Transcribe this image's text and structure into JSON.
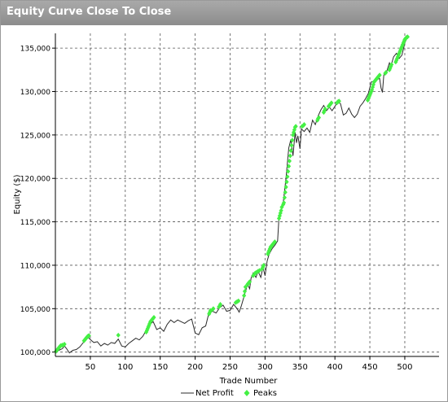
{
  "window": {
    "title": "Equity Curve Close To Close"
  },
  "chart_data": {
    "type": "line",
    "xlabel": "Trade Number",
    "ylabel": "Equity ($)",
    "xlim": [
      0,
      549
    ],
    "ylim": [
      99500,
      136700
    ],
    "x_ticks": [
      50,
      100,
      150,
      200,
      250,
      300,
      350,
      400,
      450,
      500
    ],
    "y_ticks": [
      100000,
      105000,
      110000,
      115000,
      120000,
      125000,
      130000,
      135000
    ],
    "y_tick_labels": [
      "100,000",
      "105,000",
      "110,000",
      "115,000",
      "120,000",
      "125,000",
      "130,000",
      "135,000"
    ],
    "grid": true,
    "legend": {
      "position": "bottom",
      "entries": [
        "Net Profit",
        "Peaks"
      ]
    },
    "series": [
      {
        "name": "Net Profit",
        "color": "#2b2b2b",
        "points": [
          [
            0,
            100000
          ],
          [
            5,
            100200
          ],
          [
            10,
            100400
          ],
          [
            13,
            100700
          ],
          [
            16,
            100400
          ],
          [
            20,
            99900
          ],
          [
            25,
            100200
          ],
          [
            30,
            100300
          ],
          [
            35,
            100600
          ],
          [
            40,
            101100
          ],
          [
            45,
            101800
          ],
          [
            48,
            101600
          ],
          [
            52,
            101300
          ],
          [
            55,
            101100
          ],
          [
            60,
            101200
          ],
          [
            65,
            100700
          ],
          [
            70,
            101000
          ],
          [
            75,
            100800
          ],
          [
            80,
            101100
          ],
          [
            85,
            101000
          ],
          [
            90,
            101500
          ],
          [
            95,
            100700
          ],
          [
            100,
            100600
          ],
          [
            105,
            101000
          ],
          [
            110,
            101300
          ],
          [
            115,
            101600
          ],
          [
            120,
            101400
          ],
          [
            125,
            101800
          ],
          [
            130,
            102500
          ],
          [
            135,
            103200
          ],
          [
            140,
            103500
          ],
          [
            145,
            102600
          ],
          [
            150,
            102800
          ],
          [
            155,
            102400
          ],
          [
            160,
            103200
          ],
          [
            165,
            103700
          ],
          [
            170,
            103400
          ],
          [
            175,
            103700
          ],
          [
            180,
            103500
          ],
          [
            185,
            103300
          ],
          [
            190,
            103600
          ],
          [
            195,
            103800
          ],
          [
            200,
            102200
          ],
          [
            205,
            102000
          ],
          [
            210,
            102800
          ],
          [
            215,
            103000
          ],
          [
            220,
            104600
          ],
          [
            225,
            104700
          ],
          [
            230,
            104500
          ],
          [
            235,
            105100
          ],
          [
            240,
            105400
          ],
          [
            245,
            104700
          ],
          [
            250,
            104800
          ],
          [
            255,
            105500
          ],
          [
            260,
            105000
          ],
          [
            263,
            104600
          ],
          [
            266,
            105300
          ],
          [
            270,
            106400
          ],
          [
            275,
            107800
          ],
          [
            278,
            107300
          ],
          [
            280,
            108500
          ],
          [
            283,
            109100
          ],
          [
            287,
            108600
          ],
          [
            290,
            109300
          ],
          [
            294,
            108600
          ],
          [
            297,
            109800
          ],
          [
            300,
            108800
          ],
          [
            303,
            110500
          ],
          [
            306,
            111300
          ],
          [
            310,
            111900
          ],
          [
            314,
            112300
          ],
          [
            318,
            112800
          ],
          [
            320,
            115500
          ],
          [
            323,
            116400
          ],
          [
            326,
            117200
          ],
          [
            330,
            120000
          ],
          [
            334,
            123500
          ],
          [
            337,
            124500
          ],
          [
            340,
            122600
          ],
          [
            343,
            125300
          ],
          [
            345,
            124100
          ],
          [
            347,
            124900
          ],
          [
            350,
            123400
          ],
          [
            352,
            125700
          ],
          [
            356,
            125400
          ],
          [
            360,
            125800
          ],
          [
            364,
            125300
          ],
          [
            368,
            126700
          ],
          [
            372,
            126200
          ],
          [
            376,
            127200
          ],
          [
            380,
            127900
          ],
          [
            384,
            128400
          ],
          [
            388,
            127800
          ],
          [
            392,
            128200
          ],
          [
            396,
            127800
          ],
          [
            400,
            128300
          ],
          [
            404,
            128800
          ],
          [
            408,
            128600
          ],
          [
            412,
            127300
          ],
          [
            416,
            127500
          ],
          [
            420,
            128100
          ],
          [
            424,
            127400
          ],
          [
            428,
            127000
          ],
          [
            432,
            127400
          ],
          [
            436,
            128300
          ],
          [
            440,
            128700
          ],
          [
            444,
            129200
          ],
          [
            448,
            129800
          ],
          [
            452,
            131100
          ],
          [
            456,
            131200
          ],
          [
            460,
            131400
          ],
          [
            464,
            131500
          ],
          [
            466,
            130400
          ],
          [
            468,
            129900
          ],
          [
            470,
            131900
          ],
          [
            474,
            132300
          ],
          [
            478,
            133300
          ],
          [
            480,
            132900
          ],
          [
            484,
            134000
          ],
          [
            488,
            134400
          ],
          [
            492,
            133800
          ],
          [
            496,
            134200
          ],
          [
            500,
            135600
          ],
          [
            504,
            136300
          ]
        ]
      },
      {
        "name": "Peaks",
        "color": "#44f044",
        "x": [
          1,
          2,
          3,
          4,
          5,
          6,
          7,
          8,
          10,
          12,
          13,
          41,
          42,
          43,
          44,
          45,
          46,
          47,
          48,
          90,
          130,
          131,
          132,
          133,
          134,
          135,
          136,
          137,
          138,
          139,
          140,
          141,
          220,
          221,
          222,
          225,
          226,
          234,
          235,
          236,
          258,
          260,
          262,
          270,
          271,
          272,
          275,
          276,
          277,
          278,
          283,
          285,
          286,
          288,
          290,
          292,
          296,
          297,
          298,
          304,
          305,
          306,
          307,
          308,
          309,
          310,
          311,
          312,
          313,
          314,
          320,
          321,
          322,
          323,
          324,
          326,
          327,
          328,
          329,
          330,
          331,
          332,
          333,
          334,
          335,
          336,
          337,
          338,
          339,
          340,
          341,
          342,
          343,
          344,
          353,
          355,
          356,
          375,
          376,
          377,
          384,
          385,
          386,
          391,
          392,
          393,
          394,
          395,
          403,
          404,
          405,
          406,
          447,
          448,
          449,
          450,
          451,
          452,
          453,
          454,
          455,
          456,
          457,
          458,
          459,
          460,
          461,
          462,
          463,
          464,
          472,
          473,
          478,
          479,
          480,
          481,
          487,
          488,
          489,
          490,
          491,
          492,
          493,
          494,
          495,
          496,
          497,
          498,
          499,
          500,
          501,
          502,
          503,
          504
        ],
        "values": [
          100100,
          100200,
          100300,
          100400,
          100500,
          100600,
          100700,
          100750,
          100800,
          100850,
          100900,
          101300,
          101400,
          101500,
          101600,
          101700,
          101800,
          101850,
          101900,
          101950,
          102300,
          102500,
          102700,
          102900,
          103100,
          103300,
          103500,
          103600,
          103700,
          103800,
          103900,
          104000,
          104400,
          104600,
          104800,
          104900,
          105000,
          105200,
          105300,
          105500,
          105700,
          105800,
          105900,
          106500,
          107000,
          107500,
          107800,
          107900,
          108000,
          108100,
          108800,
          109000,
          109100,
          109200,
          109300,
          109400,
          109600,
          109800,
          110000,
          111300,
          111500,
          111700,
          111900,
          112100,
          112200,
          112300,
          112400,
          112500,
          112600,
          112700,
          115400,
          115700,
          116000,
          116300,
          116700,
          117000,
          117200,
          117800,
          118400,
          119000,
          119600,
          120200,
          120800,
          121400,
          122000,
          122600,
          123200,
          123800,
          124400,
          125000,
          125300,
          125600,
          125900,
          126000,
          126000,
          126100,
          126200,
          126700,
          126900,
          127000,
          127600,
          127800,
          128000,
          128300,
          128400,
          128500,
          128600,
          128700,
          128700,
          128800,
          128850,
          128900,
          129000,
          129200,
          129400,
          129600,
          129800,
          130000,
          130200,
          130500,
          130800,
          131100,
          131200,
          131300,
          131400,
          131500,
          131600,
          131700,
          131800,
          131900,
          132100,
          132200,
          132500,
          132700,
          132900,
          133100,
          133400,
          133600,
          133800,
          134000,
          134200,
          134400,
          134600,
          134800,
          135000,
          135200,
          135400,
          135600,
          135800,
          136000,
          136100,
          136200,
          136250,
          136300
        ]
      }
    ]
  }
}
